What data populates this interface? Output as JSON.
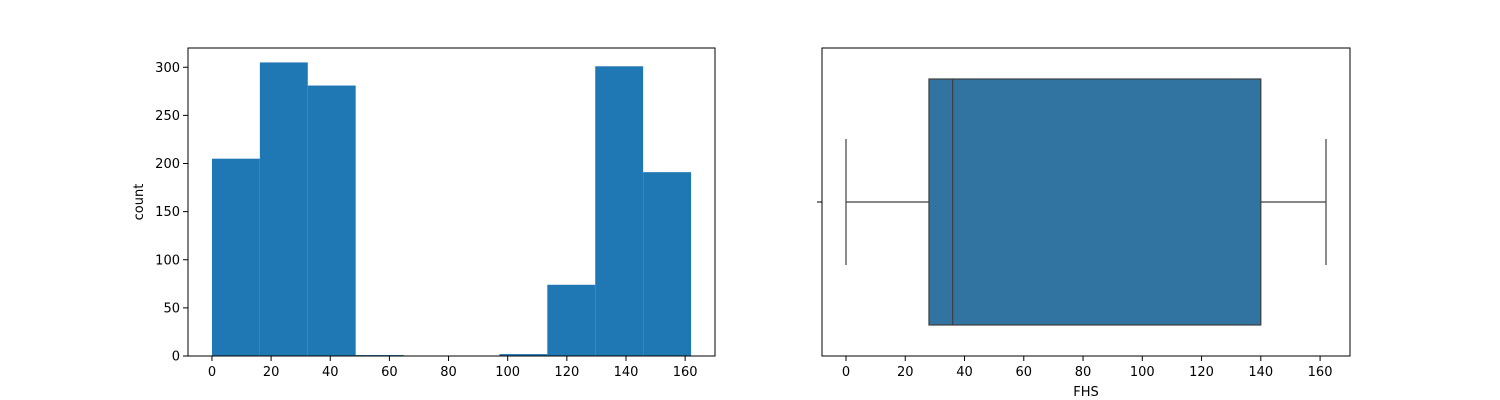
{
  "chart_data": [
    {
      "type": "bar",
      "subtype": "histogram",
      "bin_edges": [
        0,
        16.2,
        32.4,
        48.6,
        64.8,
        81.0,
        97.2,
        113.4,
        129.6,
        145.8,
        162.0
      ],
      "values": [
        205,
        305,
        281,
        1,
        0,
        0,
        2,
        74,
        301,
        191
      ],
      "color": "#1f77b4",
      "xlabel": "",
      "ylabel": "count",
      "xlim": [
        -8.1,
        170.1
      ],
      "ylim": [
        0,
        320
      ],
      "xticks": [
        0,
        20,
        40,
        60,
        80,
        100,
        120,
        140,
        160
      ],
      "yticks": [
        0,
        50,
        100,
        150,
        200,
        250,
        300
      ],
      "grid": false
    },
    {
      "type": "boxplot",
      "orientation": "horizontal",
      "whisker_low": 0,
      "q1": 28,
      "median": 36,
      "q3": 140,
      "whisker_high": 162,
      "color": "#3274a1",
      "xlabel": "FHS",
      "ylabel": "",
      "xlim": [
        -8.1,
        170.1
      ],
      "xticks": [
        0,
        20,
        40,
        60,
        80,
        100,
        120,
        140,
        160
      ],
      "grid": false
    }
  ]
}
